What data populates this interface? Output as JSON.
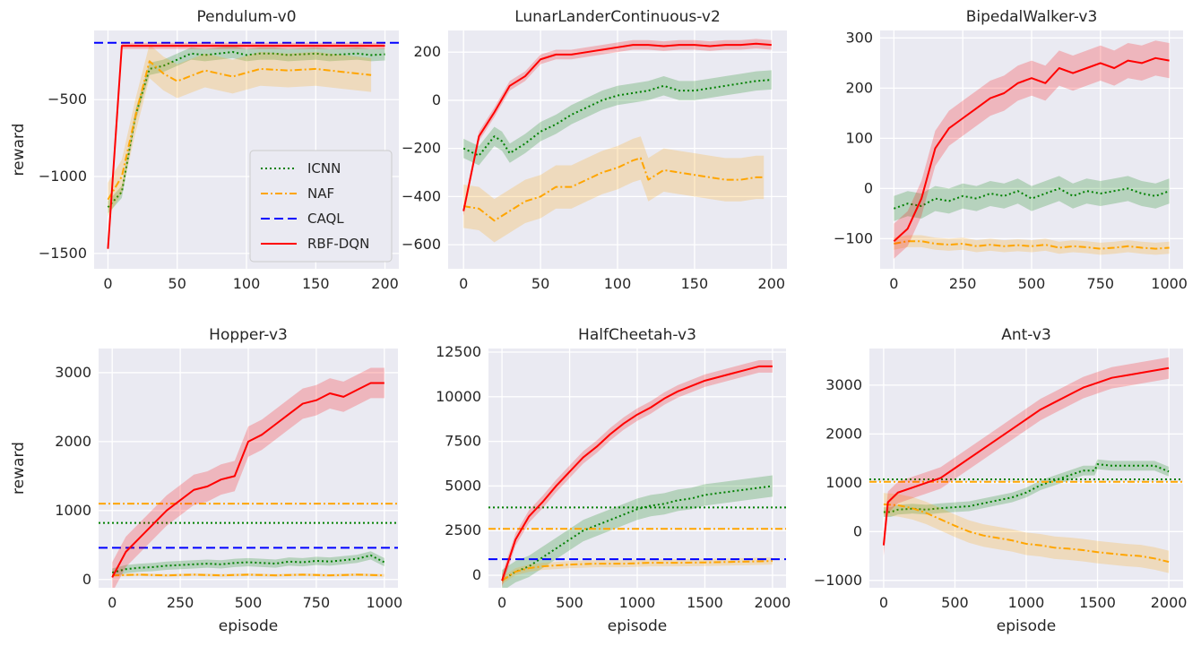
{
  "colors": {
    "ICNN": "#008000",
    "NAF": "#ffa500",
    "CAQL": "#0000ff",
    "RBF-DQN": "#ff0000"
  },
  "legend": {
    "placement": "lower-right",
    "panel": 0,
    "entries": [
      {
        "label": "ICNN",
        "series": "ICNN"
      },
      {
        "label": "NAF",
        "series": "NAF"
      },
      {
        "label": "CAQL",
        "series": "CAQL"
      },
      {
        "label": "RBF-DQN",
        "series": "RBF-DQN"
      }
    ]
  },
  "chart_data": [
    {
      "type": "line",
      "title": "Pendulum-v0",
      "xlabel": "",
      "ylabel": "reward",
      "xlim": [
        -10,
        210
      ],
      "ylim": [
        -1600,
        -50
      ],
      "xticks": [
        0,
        50,
        100,
        150,
        200
      ],
      "yticks": [
        -1500,
        -1000,
        -500
      ],
      "grid": true,
      "series": [
        {
          "key": "ICNN",
          "x": [
            0,
            10,
            20,
            30,
            40,
            50,
            60,
            70,
            80,
            90,
            100,
            110,
            120,
            130,
            140,
            150,
            160,
            170,
            180,
            190,
            200
          ],
          "y": [
            -1200,
            -1100,
            -600,
            -300,
            -280,
            -240,
            -200,
            -210,
            -200,
            -190,
            -210,
            -200,
            -200,
            -210,
            -205,
            -200,
            -210,
            -205,
            -200,
            -210,
            -205
          ],
          "band": 40
        },
        {
          "key": "NAF",
          "x": [
            0,
            10,
            20,
            30,
            40,
            50,
            70,
            90,
            110,
            130,
            150,
            170,
            190
          ],
          "y": [
            -1150,
            -1000,
            -600,
            -250,
            -330,
            -380,
            -310,
            -350,
            -300,
            -310,
            -300,
            -320,
            -340
          ],
          "band": 110
        },
        {
          "key": "CAQL",
          "hline": -130
        },
        {
          "key": "RBF-DQN",
          "x": [
            0,
            10,
            20,
            50,
            100,
            150,
            200
          ],
          "y": [
            -1470,
            -150,
            -150,
            -150,
            -150,
            -150,
            -150
          ],
          "band": 20
        }
      ]
    },
    {
      "type": "line",
      "title": "LunarLanderContinuous-v2",
      "xlabel": "",
      "ylabel": "",
      "xlim": [
        -10,
        210
      ],
      "ylim": [
        -700,
        290
      ],
      "xticks": [
        0,
        50,
        100,
        150,
        200
      ],
      "yticks": [
        -600,
        -400,
        -200,
        0,
        200
      ],
      "grid": true,
      "series": [
        {
          "key": "ICNN",
          "x": [
            0,
            10,
            20,
            25,
            30,
            40,
            50,
            60,
            70,
            80,
            90,
            100,
            110,
            120,
            130,
            140,
            150,
            160,
            170,
            180,
            190,
            200
          ],
          "y": [
            -200,
            -230,
            -150,
            -170,
            -220,
            -180,
            -130,
            -100,
            -60,
            -30,
            0,
            20,
            30,
            40,
            60,
            40,
            40,
            50,
            60,
            70,
            80,
            85
          ],
          "band": 40
        },
        {
          "key": "NAF",
          "x": [
            0,
            10,
            20,
            30,
            40,
            50,
            60,
            70,
            80,
            90,
            100,
            110,
            115,
            120,
            130,
            140,
            150,
            160,
            170,
            180,
            190,
            195
          ],
          "y": [
            -440,
            -450,
            -500,
            -460,
            -420,
            -400,
            -360,
            -360,
            -330,
            -300,
            -280,
            -250,
            -240,
            -330,
            -290,
            -300,
            -310,
            -320,
            -330,
            -330,
            -320,
            -320
          ],
          "band": 90
        },
        {
          "key": "RBF-DQN",
          "x": [
            0,
            10,
            20,
            30,
            40,
            50,
            60,
            70,
            80,
            90,
            100,
            110,
            120,
            130,
            140,
            150,
            160,
            170,
            180,
            190,
            200
          ],
          "y": [
            -460,
            -150,
            -50,
            60,
            100,
            170,
            190,
            190,
            200,
            210,
            220,
            230,
            230,
            225,
            230,
            230,
            225,
            230,
            230,
            235,
            230
          ],
          "band": 20
        }
      ]
    },
    {
      "type": "line",
      "title": "BipedalWalker-v3",
      "xlabel": "",
      "ylabel": "",
      "xlim": [
        -50,
        1050
      ],
      "ylim": [
        -160,
        315
      ],
      "xticks": [
        0,
        250,
        500,
        750,
        1000
      ],
      "yticks": [
        -100,
        0,
        100,
        200,
        300
      ],
      "grid": true,
      "series": [
        {
          "key": "ICNN",
          "x": [
            0,
            50,
            100,
            150,
            200,
            250,
            300,
            350,
            400,
            450,
            500,
            550,
            600,
            650,
            700,
            750,
            800,
            850,
            900,
            950,
            1000
          ],
          "y": [
            -40,
            -30,
            -35,
            -20,
            -25,
            -15,
            -20,
            -10,
            -15,
            -5,
            -20,
            -10,
            0,
            -15,
            -5,
            -10,
            -5,
            0,
            -10,
            -15,
            -5
          ],
          "band": 25
        },
        {
          "key": "NAF",
          "x": [
            0,
            50,
            100,
            150,
            200,
            250,
            300,
            350,
            400,
            450,
            500,
            550,
            600,
            650,
            700,
            750,
            800,
            850,
            900,
            950,
            1000
          ],
          "y": [
            -110,
            -105,
            -105,
            -110,
            -112,
            -110,
            -115,
            -112,
            -115,
            -113,
            -115,
            -112,
            -118,
            -115,
            -117,
            -120,
            -118,
            -115,
            -118,
            -120,
            -118
          ],
          "band": 12
        },
        {
          "key": "RBF-DQN",
          "x": [
            0,
            50,
            100,
            150,
            200,
            250,
            300,
            350,
            400,
            450,
            500,
            550,
            600,
            650,
            700,
            750,
            800,
            850,
            900,
            950,
            1000
          ],
          "y": [
            -105,
            -80,
            -20,
            80,
            120,
            140,
            160,
            180,
            190,
            210,
            220,
            210,
            240,
            230,
            240,
            250,
            240,
            255,
            250,
            260,
            255
          ],
          "band": 35
        }
      ]
    },
    {
      "type": "line",
      "title": "Hopper-v3",
      "xlabel": "episode",
      "ylabel": "reward",
      "xlim": [
        -50,
        1050
      ],
      "ylim": [
        -120,
        3350
      ],
      "xticks": [
        0,
        250,
        500,
        750,
        1000
      ],
      "yticks": [
        0,
        1000,
        2000,
        3000
      ],
      "grid": true,
      "series": [
        {
          "key": "ICNN",
          "x": [
            0,
            50,
            100,
            150,
            200,
            250,
            300,
            350,
            400,
            450,
            500,
            550,
            600,
            650,
            700,
            750,
            800,
            850,
            900,
            950,
            1000
          ],
          "y": [
            100,
            150,
            170,
            180,
            200,
            210,
            220,
            230,
            220,
            240,
            250,
            240,
            230,
            260,
            250,
            270,
            260,
            280,
            300,
            350,
            250
          ],
          "band": 60
        },
        {
          "key": "NAF",
          "x": [
            0,
            100,
            200,
            300,
            400,
            500,
            600,
            700,
            800,
            900,
            1000
          ],
          "y": [
            60,
            70,
            60,
            70,
            60,
            70,
            60,
            70,
            60,
            70,
            60
          ],
          "band": 20
        },
        {
          "key": "NAF",
          "hline": 1100
        },
        {
          "key": "ICNN",
          "hline": 820
        },
        {
          "key": "CAQL",
          "hline": 460
        },
        {
          "key": "RBF-DQN",
          "x": [
            0,
            50,
            100,
            150,
            200,
            250,
            300,
            350,
            400,
            450,
            500,
            550,
            600,
            650,
            700,
            750,
            800,
            850,
            900,
            950,
            1000
          ],
          "y": [
            30,
            400,
            600,
            800,
            1000,
            1150,
            1300,
            1350,
            1450,
            1500,
            2000,
            2100,
            2250,
            2400,
            2550,
            2600,
            2700,
            2650,
            2750,
            2850,
            2850
          ],
          "band": 220
        }
      ]
    },
    {
      "type": "line",
      "title": "HalfCheetah-v3",
      "xlabel": "episode",
      "ylabel": "",
      "xlim": [
        -100,
        2100
      ],
      "ylim": [
        -700,
        12700
      ],
      "xticks": [
        0,
        500,
        1000,
        1500,
        2000
      ],
      "yticks": [
        0,
        2500,
        5000,
        7500,
        10000,
        12500
      ],
      "grid": true,
      "series": [
        {
          "key": "ICNN",
          "x": [
            0,
            100,
            200,
            300,
            400,
            500,
            600,
            700,
            800,
            900,
            1000,
            1100,
            1200,
            1300,
            1400,
            1500,
            1600,
            1700,
            1800,
            1900,
            2000
          ],
          "y": [
            -300,
            200,
            500,
            1000,
            1500,
            2000,
            2500,
            2800,
            3100,
            3400,
            3700,
            3900,
            4000,
            4200,
            4300,
            4500,
            4600,
            4700,
            4800,
            4900,
            5000
          ],
          "band": 600
        },
        {
          "key": "NAF",
          "x": [
            0,
            100,
            200,
            300,
            400,
            500,
            700,
            900,
            1100,
            1300,
            1500,
            1700,
            1900,
            2000
          ],
          "y": [
            -300,
            200,
            400,
            500,
            550,
            600,
            650,
            650,
            700,
            700,
            720,
            750,
            780,
            800
          ],
          "band": 200
        },
        {
          "key": "ICNN",
          "hline": 3800
        },
        {
          "key": "NAF",
          "hline": 2600
        },
        {
          "key": "CAQL",
          "hline": 900
        },
        {
          "key": "RBF-DQN",
          "x": [
            0,
            100,
            200,
            300,
            400,
            500,
            600,
            700,
            800,
            900,
            1000,
            1100,
            1200,
            1300,
            1400,
            1500,
            1600,
            1700,
            1800,
            1900,
            2000
          ],
          "y": [
            -300,
            2000,
            3300,
            4100,
            5000,
            5800,
            6600,
            7200,
            7900,
            8500,
            9000,
            9400,
            9900,
            10300,
            10600,
            10900,
            11100,
            11300,
            11500,
            11700,
            11700
          ],
          "band": 350
        }
      ]
    },
    {
      "type": "line",
      "title": "Ant-v3",
      "xlabel": "episode",
      "ylabel": "",
      "xlim": [
        -100,
        2100
      ],
      "ylim": [
        -1150,
        3750
      ],
      "xticks": [
        0,
        500,
        1000,
        1500,
        2000
      ],
      "yticks": [
        -1000,
        0,
        1000,
        2000,
        3000
      ],
      "grid": true,
      "series": [
        {
          "key": "ICNN",
          "x": [
            0,
            50,
            100,
            200,
            300,
            400,
            500,
            600,
            700,
            800,
            900,
            1000,
            1100,
            1200,
            1300,
            1400,
            1480,
            1500,
            1600,
            1700,
            1800,
            1900,
            2000
          ],
          "y": [
            400,
            400,
            450,
            470,
            450,
            480,
            500,
            520,
            580,
            640,
            700,
            800,
            950,
            1050,
            1150,
            1250,
            1250,
            1380,
            1350,
            1350,
            1350,
            1350,
            1230
          ],
          "band": 100
        },
        {
          "key": "NAF",
          "x": [
            0,
            100,
            200,
            300,
            400,
            500,
            600,
            700,
            800,
            900,
            1000,
            1100,
            1200,
            1300,
            1400,
            1500,
            1600,
            1700,
            1800,
            1900,
            2000
          ],
          "y": [
            560,
            540,
            480,
            380,
            250,
            120,
            0,
            -80,
            -130,
            -180,
            -250,
            -280,
            -330,
            -350,
            -380,
            -420,
            -450,
            -480,
            -500,
            -550,
            -620
          ],
          "band": 230
        },
        {
          "key": "ICNN",
          "hline": 1070
        },
        {
          "key": "NAF",
          "hline": 1020
        },
        {
          "key": "RBF-DQN",
          "x": [
            0,
            30,
            100,
            200,
            300,
            400,
            500,
            600,
            700,
            800,
            900,
            1000,
            1100,
            1200,
            1300,
            1400,
            1500,
            1600,
            1700,
            1800,
            1900,
            2000
          ],
          "y": [
            -280,
            600,
            800,
            900,
            1000,
            1100,
            1300,
            1500,
            1700,
            1900,
            2100,
            2300,
            2500,
            2650,
            2800,
            2950,
            3050,
            3150,
            3200,
            3250,
            3300,
            3350
          ],
          "band": 220
        }
      ]
    }
  ]
}
